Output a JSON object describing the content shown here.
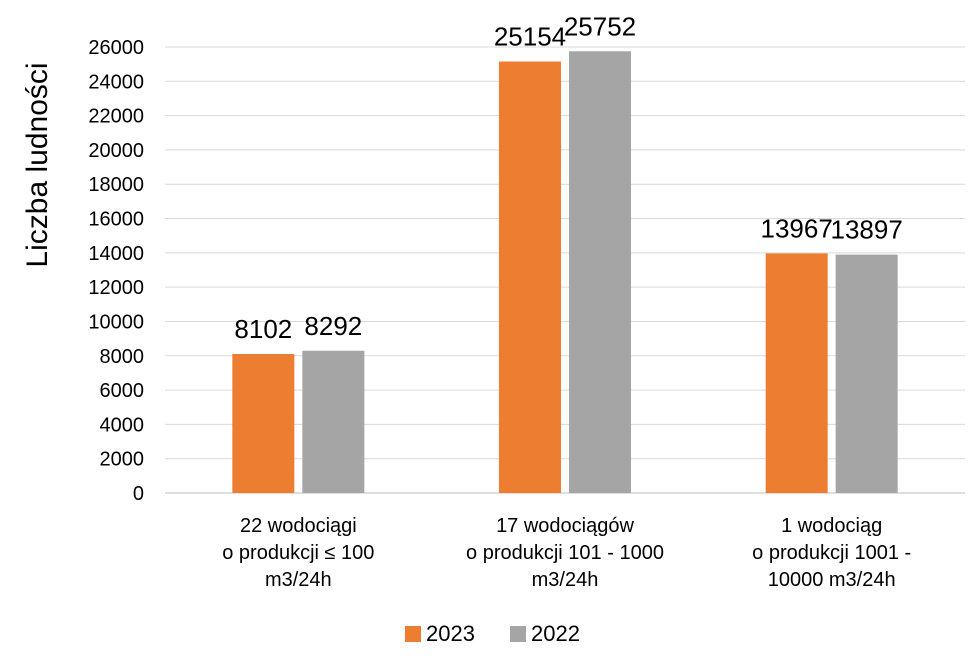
{
  "chart_data": {
    "type": "bar",
    "ylabel": "Liczba ludności",
    "ylim": [
      0,
      26000
    ],
    "ytick_step": 2000,
    "grid": true,
    "legend_position": "bottom",
    "categories": [
      [
        "22 wodociągi",
        "o produkcji  ≤ 100",
        "m3/24h"
      ],
      [
        "17 wodociągów",
        "o produkcji 101 - 1000",
        "m3/24h"
      ],
      [
        "1 wodociąg",
        "o produkcji 1001 -",
        "10000 m3/24h"
      ]
    ],
    "series": [
      {
        "name": "2023",
        "color": "#ED7D31",
        "values": [
          8102,
          25154,
          13967
        ]
      },
      {
        "name": "2022",
        "color": "#A5A5A5",
        "values": [
          8292,
          25752,
          13897
        ]
      }
    ]
  }
}
